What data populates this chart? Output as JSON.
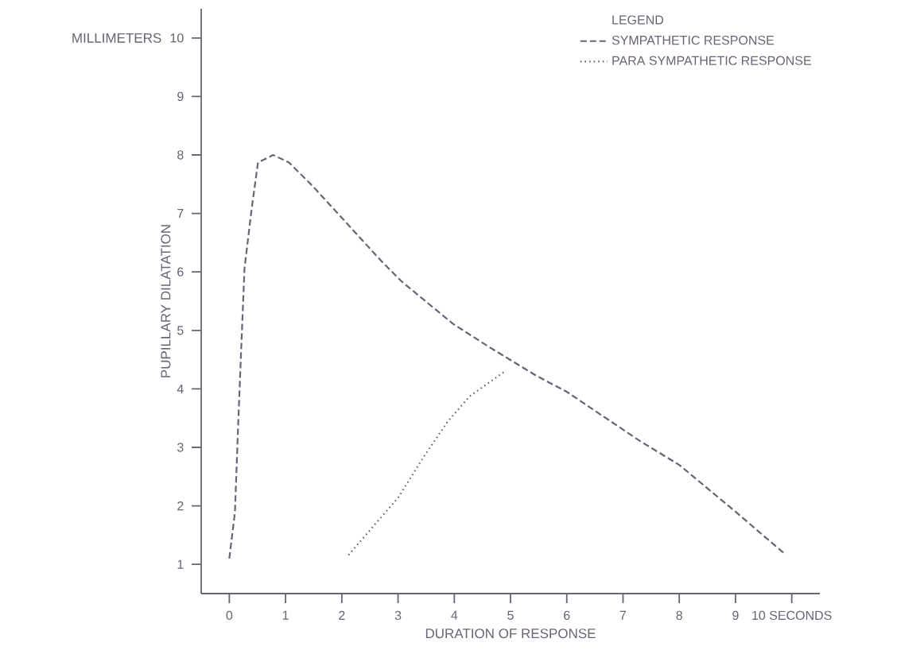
{
  "chart_data": {
    "type": "line",
    "xlabel": "DURATION OF RESPONSE",
    "ylabel": "PUPILLARY DILATATION",
    "legend_title": "LEGEND",
    "annotations": [
      "MILLIMETERS"
    ],
    "xlim": [
      -0.5,
      10.5
    ],
    "ylim": [
      0.5,
      10.5
    ],
    "xticks": [
      0,
      1,
      2,
      3,
      4,
      5,
      6,
      7,
      8,
      9,
      {
        "value": 10,
        "label": "10 SECONDS"
      }
    ],
    "yticks": [
      1,
      2,
      3,
      4,
      5,
      6,
      7,
      8,
      9,
      10
    ],
    "legend": "top right",
    "series": [
      {
        "name": "SYMPATHETIC RESPONSE",
        "color": "#6b6275",
        "line_style": "dashed",
        "x": [
          0,
          0.1,
          0.16,
          0.21,
          0.27,
          0.4,
          0.51,
          0.78,
          1.06,
          1.48,
          2.09,
          2.68,
          3.06,
          3.98,
          4.63,
          5.45,
          6.0,
          7.3,
          8.0,
          9.0,
          9.85
        ],
        "values": [
          1.1,
          1.89,
          3.45,
          4.65,
          6.06,
          7.1,
          7.87,
          8.0,
          7.87,
          7.47,
          6.83,
          6.21,
          5.84,
          5.11,
          4.71,
          4.23,
          3.95,
          3.11,
          2.7,
          1.9,
          1.2
        ]
      },
      {
        "name": "PARA SYMPATHETIC RESPONSE",
        "color": "#6b6275",
        "line_style": "dotted",
        "x": [
          2.12,
          3.01,
          3.45,
          3.89,
          4.27,
          4.9
        ],
        "values": [
          1.16,
          2.15,
          2.83,
          3.45,
          3.87,
          4.3
        ]
      }
    ]
  }
}
